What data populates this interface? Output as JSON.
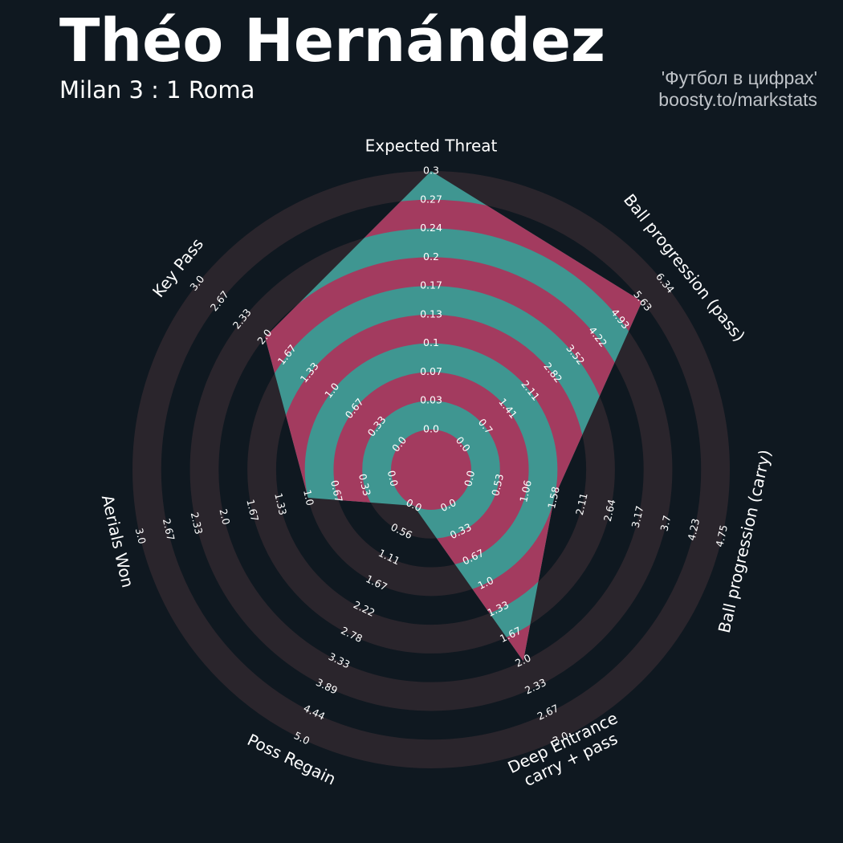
{
  "header": {
    "player_name": "Théo Hernández",
    "match": "Milan 3 : 1 Roma",
    "credit_line1": "'Футбол в цифрах'",
    "credit_line2": "boosty.to/markstats"
  },
  "colors": {
    "background": "#0f1820",
    "outer_ring": "#2a252c",
    "player_polygon": "#3f9691",
    "player_stripe": "#a33b5f"
  },
  "chart_data": {
    "type": "radar",
    "title": "Théo Hernández",
    "subtitle": "Milan 3 : 1 Roma",
    "axes": [
      {
        "label": "Expected Threat",
        "value": 0.3,
        "min": 0.0,
        "max": 0.3,
        "ticks": [
          "0.0",
          "0.03",
          "0.07",
          "0.1",
          "0.13",
          "0.17",
          "0.2",
          "0.24",
          "0.27",
          "0.3"
        ]
      },
      {
        "label": "Ball progression (pass)",
        "value": 5.63,
        "min": 0.0,
        "max": 6.34,
        "ticks": [
          "0.0",
          "0.7",
          "1.41",
          "2.11",
          "2.82",
          "3.52",
          "4.22",
          "4.93",
          "5.63",
          "6.34"
        ]
      },
      {
        "label": "Ball progression (carry)",
        "value": 1.58,
        "min": 0.0,
        "max": 4.75,
        "ticks": [
          "0.0",
          "0.53",
          "1.06",
          "1.58",
          "2.11",
          "2.64",
          "3.17",
          "3.7",
          "4.23",
          "4.75"
        ]
      },
      {
        "label": "Deep Entrance\ncarry + pass",
        "value": 2.0,
        "min": 0.0,
        "max": 3.0,
        "ticks": [
          "0.0",
          "0.33",
          "0.67",
          "1.0",
          "1.33",
          "1.67",
          "2.0",
          "2.33",
          "2.67",
          "3.0"
        ]
      },
      {
        "label": "Poss Regain",
        "value": 0.0,
        "min": 0.0,
        "max": 5.0,
        "ticks": [
          "0.0",
          "0.56",
          "1.11",
          "1.67",
          "2.22",
          "2.78",
          "3.33",
          "3.89",
          "4.44",
          "5.0"
        ]
      },
      {
        "label": "Aerials Won",
        "value": 1.0,
        "min": 0.0,
        "max": 3.0,
        "ticks": [
          "0.0",
          "0.33",
          "0.67",
          "1.0",
          "1.33",
          "1.67",
          "2.0",
          "2.33",
          "2.67",
          "3.0"
        ]
      },
      {
        "label": "Key Pass",
        "value": 2.0,
        "min": 0.0,
        "max": 3.0,
        "ticks": [
          "0.0",
          "0.33",
          "0.67",
          "1.0",
          "1.33",
          "1.67",
          "2.0",
          "2.33",
          "2.67",
          "3.0"
        ]
      }
    ],
    "grid": true,
    "legend": "none"
  }
}
